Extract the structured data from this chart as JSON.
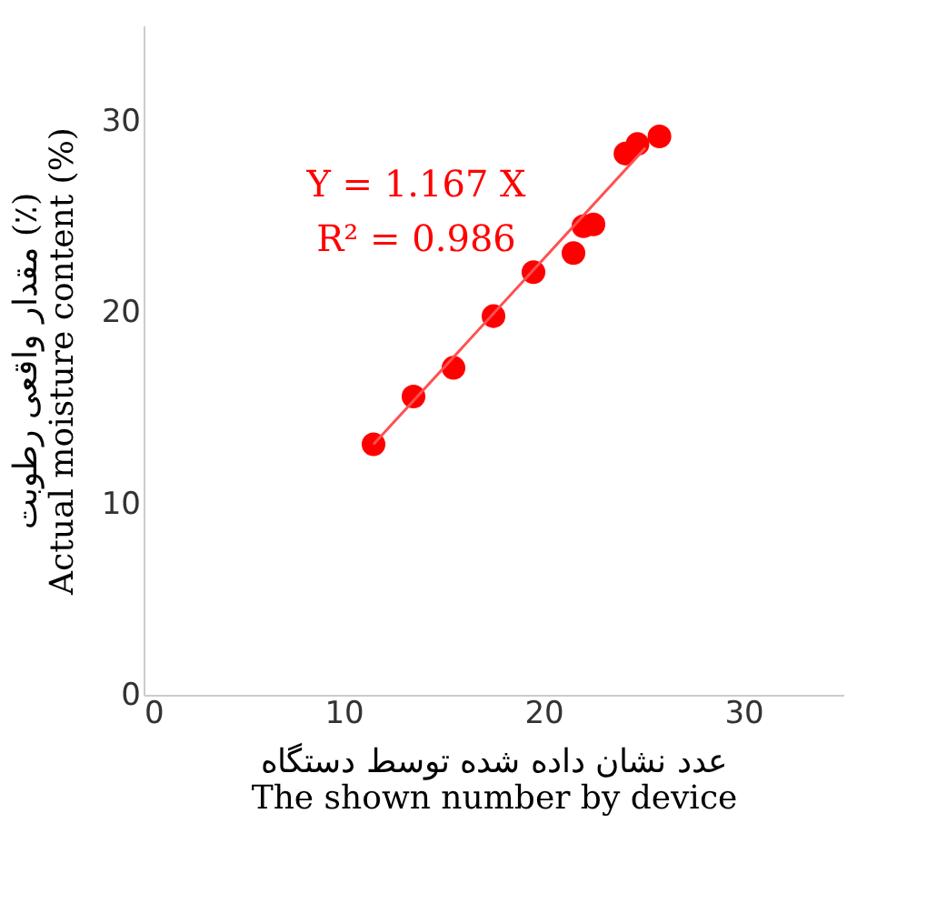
{
  "chart_data": {
    "type": "scatter",
    "xlabel": "عدد نشان داده شده توسط دستگاه\nThe shown number by device",
    "ylabel": "مقدار واقعی رطوبت (٪)\nActual moisture content (%)",
    "annotations": [
      "Y = 1.167 X",
      "R² = 0.986"
    ],
    "xlim": [
      0,
      35
    ],
    "ylim": [
      0,
      35
    ],
    "xticks": [
      0,
      10,
      20,
      30
    ],
    "yticks": [
      0,
      10,
      20,
      30
    ],
    "grid": false,
    "series": [
      {
        "color": "#ff0000",
        "marker": "circle",
        "x": [
          11.5,
          13.5,
          15.5,
          17.5,
          19.5,
          21.5,
          22.0,
          22.5,
          24.1,
          24.7,
          25.8
        ],
        "values": [
          13.1,
          15.6,
          17.1,
          19.8,
          22.1,
          23.1,
          24.5,
          24.6,
          28.3,
          28.8,
          29.2
        ]
      },
      {
        "type": "line",
        "marker": "none",
        "color": "#ff5050",
        "x": [
          11.5,
          25.1
        ],
        "values": [
          13.1,
          28.6
        ]
      }
    ]
  }
}
